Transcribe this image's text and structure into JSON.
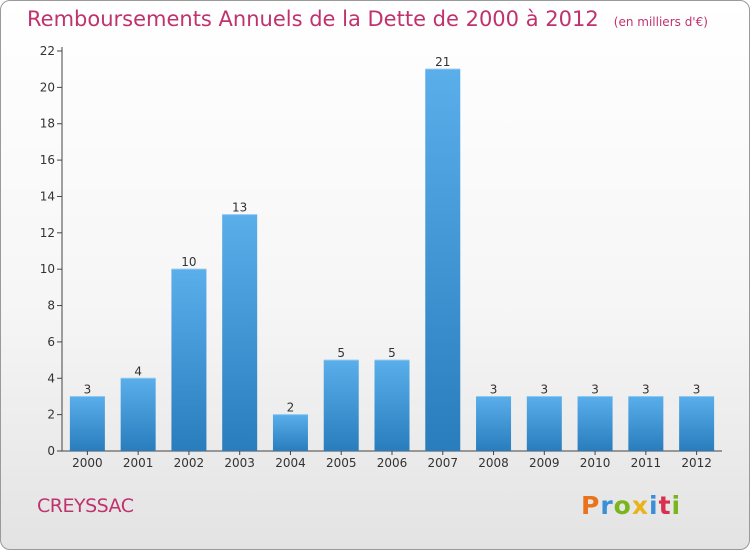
{
  "header": {
    "title": "Remboursements Annuels de la Dette de 2000 à 2012",
    "unit": "(en milliers d'€)"
  },
  "footer": {
    "commune": "CREYSSAC",
    "logo_text": "Proxiti",
    "logo_colors": [
      "#e8731c",
      "#3a8fd8",
      "#7ab51d",
      "#e8b41c",
      "#3a8fd8",
      "#d9304f",
      "#7ab51d"
    ]
  },
  "chart_data": {
    "type": "bar",
    "title": "Remboursements Annuels de la Dette de 2000 à 2012",
    "xlabel": "",
    "ylabel": "",
    "categories": [
      "2000",
      "2001",
      "2002",
      "2003",
      "2004",
      "2005",
      "2006",
      "2007",
      "2008",
      "2009",
      "2010",
      "2011",
      "2012"
    ],
    "values": [
      3,
      4,
      10,
      13,
      2,
      5,
      5,
      21,
      3,
      3,
      3,
      3,
      3
    ],
    "ylim": [
      0,
      22
    ],
    "yticks": [
      0,
      2,
      4,
      6,
      8,
      10,
      12,
      14,
      16,
      18,
      20,
      22
    ],
    "grid": false,
    "bar_color_top": "#5aaeea",
    "bar_color_bottom": "#2a7dbd"
  }
}
